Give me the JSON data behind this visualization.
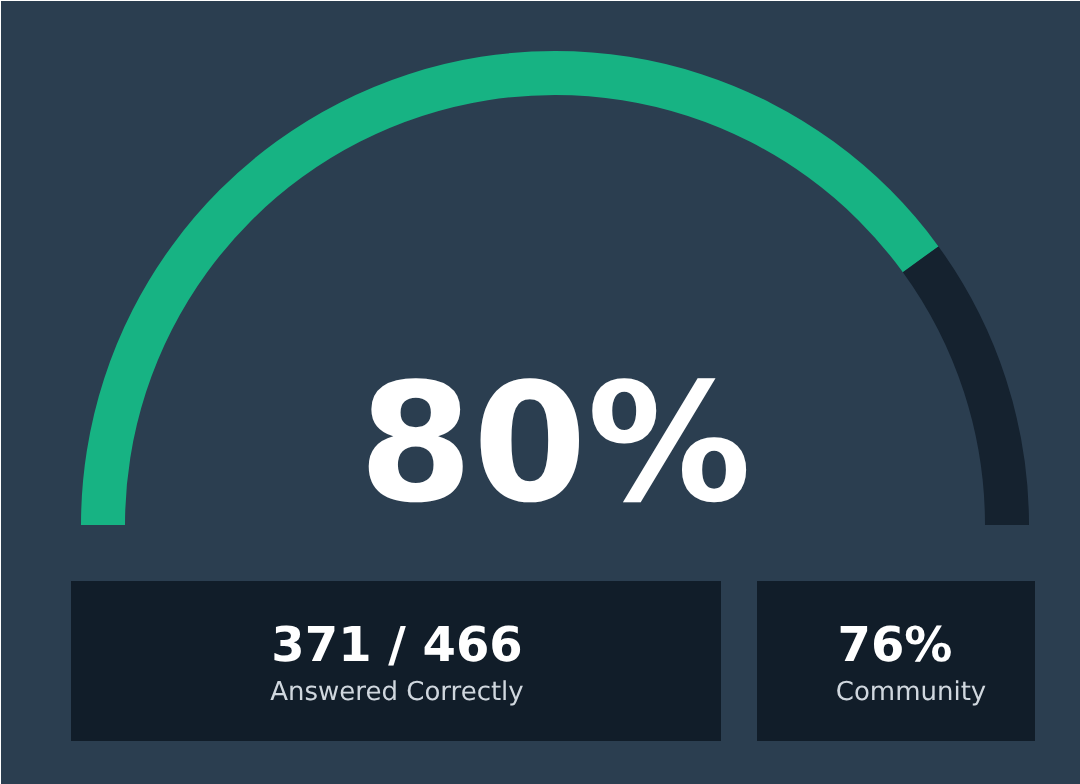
{
  "chart_data": {
    "type": "donut",
    "categories": [
      null,
      null
    ],
    "values": [
      80,
      20
    ],
    "colors": [
      "#17b383",
      "#15222f"
    ],
    "value_labels": [
      "80%",
      null
    ],
    "annotations": [
      "371 / 466",
      "Answered Correctly",
      "76%",
      "Community"
    ]
  }
}
